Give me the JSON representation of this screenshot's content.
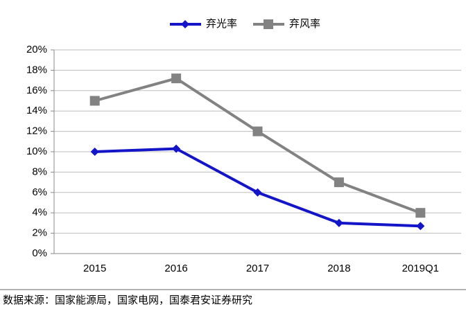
{
  "chart_data": {
    "type": "line",
    "categories": [
      "2015",
      "2016",
      "2017",
      "2018",
      "2019Q1"
    ],
    "series": [
      {
        "name": "弃光率",
        "color": "#1414c8",
        "marker": "diamond",
        "values": [
          10,
          10.3,
          6,
          3,
          2.7
        ]
      },
      {
        "name": "弃风率",
        "color": "#828282",
        "marker": "square",
        "values": [
          15,
          17.2,
          12,
          7,
          4
        ]
      }
    ],
    "ylim": [
      0,
      20
    ],
    "yticks": [
      {
        "value": 0,
        "label": "0%"
      },
      {
        "value": 2,
        "label": "2%"
      },
      {
        "value": 4,
        "label": "4%"
      },
      {
        "value": 6,
        "label": "6%"
      },
      {
        "value": 8,
        "label": "8%"
      },
      {
        "value": 10,
        "label": "10%"
      },
      {
        "value": 12,
        "label": "12%"
      },
      {
        "value": 14,
        "label": "14%"
      },
      {
        "value": 16,
        "label": "16%"
      },
      {
        "value": 18,
        "label": "18%"
      },
      {
        "value": 20,
        "label": "20%"
      }
    ],
    "grid": true,
    "legend": "top",
    "source": "数据来源：国家能源局，国家电网，国泰君安证券研究"
  }
}
